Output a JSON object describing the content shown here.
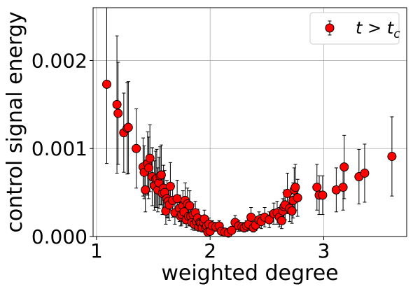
{
  "chart_data": {
    "type": "scatter",
    "title": "",
    "xlabel": "weighted degree",
    "ylabel": "control signal energy",
    "xlim": [
      0.97,
      3.73
    ],
    "ylim": [
      0.0,
      0.0026
    ],
    "xticks": [
      1,
      2,
      3
    ],
    "xtick_labels": [
      "1",
      "2",
      "3"
    ],
    "yticks": [
      0.0,
      0.001,
      0.002
    ],
    "ytick_labels": [
      "0.000",
      "0.001",
      "0.002"
    ],
    "grid": true,
    "legend": {
      "position": "top-right",
      "label": "t > t_c",
      "label_main": "t > t",
      "label_sub": "c"
    },
    "marker_color": "#ff0000",
    "marker_edge_color": "#000000",
    "series": [
      {
        "name": "t > t_c",
        "x": [
          1.09,
          1.18,
          1.19,
          1.24,
          1.27,
          1.28,
          1.35,
          1.41,
          1.42,
          1.43,
          1.45,
          1.46,
          1.47,
          1.49,
          1.51,
          1.52,
          1.53,
          1.54,
          1.55,
          1.56,
          1.57,
          1.58,
          1.59,
          1.6,
          1.61,
          1.62,
          1.63,
          1.64,
          1.65,
          1.67,
          1.69,
          1.71,
          1.73,
          1.74,
          1.75,
          1.76,
          1.77,
          1.78,
          1.79,
          1.8,
          1.81,
          1.82,
          1.83,
          1.84,
          1.85,
          1.86,
          1.87,
          1.88,
          1.89,
          1.9,
          1.91,
          1.92,
          1.93,
          1.94,
          1.95,
          1.96,
          1.97,
          1.98,
          1.99,
          2.0,
          2.02,
          2.05,
          2.08,
          2.1,
          2.13,
          2.16,
          2.19,
          2.22,
          2.25,
          2.28,
          2.3,
          2.32,
          2.34,
          2.36,
          2.38,
          2.4,
          2.43,
          2.45,
          2.48,
          2.52,
          2.56,
          2.59,
          2.61,
          2.63,
          2.64,
          2.65,
          2.66,
          2.68,
          2.7,
          2.72,
          2.73,
          2.74,
          2.75,
          2.77,
          2.94,
          2.96,
          2.99,
          3.11,
          3.17,
          3.18,
          3.31,
          3.36,
          3.6
        ],
        "y": [
          0.00173,
          0.0015,
          0.0014,
          0.00118,
          0.00123,
          0.00124,
          0.001,
          0.00079,
          0.00073,
          0.00053,
          0.00083,
          0.00078,
          0.00089,
          0.00068,
          0.00058,
          0.00065,
          0.00066,
          0.00053,
          0.00061,
          0.00069,
          0.0007,
          0.00049,
          0.00055,
          0.0005,
          0.00029,
          0.00043,
          0.0004,
          0.00036,
          0.00057,
          0.00041,
          0.00027,
          0.00043,
          0.00032,
          0.00023,
          0.00025,
          0.00035,
          0.00028,
          0.00041,
          0.00019,
          0.00037,
          0.00023,
          0.00035,
          0.00023,
          0.00016,
          0.00025,
          0.00014,
          0.00027,
          0.00017,
          0.00021,
          0.00011,
          0.00016,
          0.00015,
          0.0001,
          0.00016,
          0.0002,
          0.0001,
          0.00012,
          5e-05,
          0.00014,
          6e-05,
          0.00012,
          0.00011,
          0.00012,
          6e-05,
          5e-05,
          4e-05,
          7e-05,
          0.00016,
          0.00012,
          0.00011,
          0.0001,
          0.00012,
          0.00014,
          0.00022,
          0.0001,
          0.00013,
          0.00019,
          0.00017,
          0.00022,
          0.00019,
          0.00026,
          0.00027,
          0.00022,
          0.00018,
          0.00029,
          0.00034,
          0.00036,
          0.00049,
          0.00032,
          0.00029,
          0.00041,
          0.00053,
          0.00056,
          0.00044,
          0.00056,
          0.00047,
          0.00047,
          0.00053,
          0.00056,
          0.00079,
          0.00068,
          0.00072,
          0.00091
        ],
        "yerr": [
          0.0009,
          0.00078,
          0.00058,
          0.00045,
          0.00052,
          0.00052,
          0.00045,
          0.00033,
          0.0003,
          0.00025,
          0.00036,
          0.00035,
          0.00038,
          0.00033,
          0.00028,
          0.00032,
          0.00033,
          0.00025,
          0.00029,
          0.00033,
          0.00034,
          0.00024,
          0.00026,
          0.00025,
          0.00015,
          0.00021,
          0.00019,
          0.00018,
          0.00027,
          0.00019,
          0.00013,
          0.00021,
          0.00015,
          0.00011,
          0.00012,
          0.00017,
          0.00013,
          0.0002,
          9e-05,
          0.00018,
          0.00011,
          0.00017,
          0.00011,
          8e-05,
          0.00012,
          7e-05,
          0.00013,
          8e-05,
          0.0001,
          5e-05,
          8e-05,
          7e-05,
          5e-05,
          8e-05,
          0.0001,
          5e-05,
          6e-05,
          3e-05,
          7e-05,
          3e-05,
          6e-05,
          5e-05,
          6e-05,
          3e-05,
          3e-05,
          2e-05,
          3e-05,
          8e-05,
          6e-05,
          5e-05,
          5e-05,
          6e-05,
          7e-05,
          0.00011,
          5e-05,
          6e-05,
          9e-05,
          8e-05,
          0.00011,
          9e-05,
          0.00012,
          0.00013,
          0.00011,
          9e-05,
          0.00014,
          0.00016,
          0.00017,
          0.00023,
          0.00015,
          0.00014,
          0.0002,
          0.00025,
          0.00026,
          0.00021,
          0.00026,
          0.00022,
          0.00022,
          0.00025,
          0.00026,
          0.00036,
          0.00031,
          0.00033,
          0.00045
        ]
      }
    ]
  }
}
